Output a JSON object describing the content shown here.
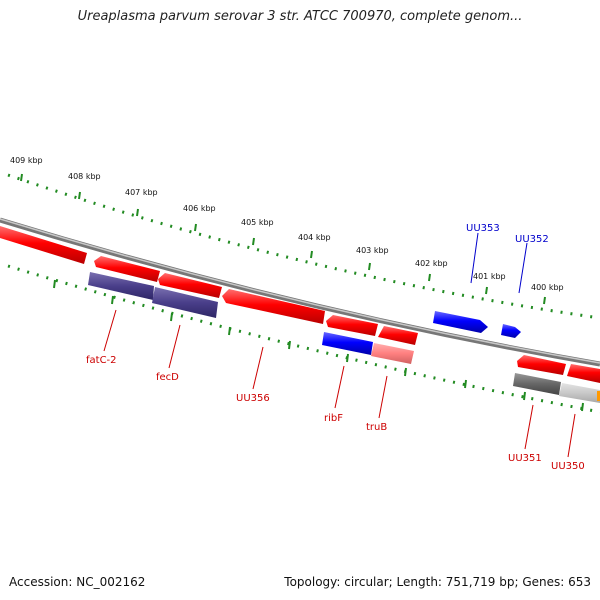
{
  "title": "Ureaplasma parvum serovar 3 str. ATCC 700970, complete genom...",
  "footer": {
    "accession": "Accession: NC_002162",
    "summary": "Topology: circular; Length: 751,719 bp; Genes: 653"
  },
  "colors": {
    "gene_forward": "#ff0000",
    "gene_other": "#0000ff",
    "tick": "#228b22",
    "backbone": "#888888",
    "label_red": "#cc0000",
    "label_blue": "#0000cc"
  },
  "scale_labels": [
    "409 kbp",
    "408 kbp",
    "407 kbp",
    "406 kbp",
    "405 kbp",
    "404 kbp",
    "403 kbp",
    "402 kbp",
    "401 kbp",
    "400 kbp"
  ],
  "gene_labels": [
    {
      "text": "UU353",
      "color": "blue"
    },
    {
      "text": "UU352",
      "color": "blue"
    },
    {
      "text": "fatC-2",
      "color": "red"
    },
    {
      "text": "fecD",
      "color": "red"
    },
    {
      "text": "UU356",
      "color": "red"
    },
    {
      "text": "ribF",
      "color": "red"
    },
    {
      "text": "truB",
      "color": "red"
    },
    {
      "text": "UU351",
      "color": "red"
    },
    {
      "text": "UU350",
      "color": "red"
    }
  ]
}
